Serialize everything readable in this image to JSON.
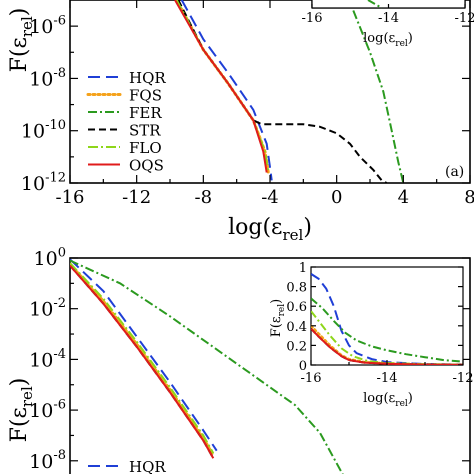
{
  "chart_data": [
    {
      "type": "line",
      "panel_label": "(a)",
      "xlabel": "log(ε_rel)",
      "ylabel": "F(ε_rel)",
      "y_scale": "log",
      "xlim": [
        -16,
        8
      ],
      "ylim_exp": [
        -12,
        -5
      ],
      "x_ticks": [
        "-16",
        "-12",
        "-8",
        "-4",
        "0",
        "4",
        "8"
      ],
      "y_ticks": [
        {
          "base": "10",
          "exp": "-6",
          "value": -6
        },
        {
          "base": "10",
          "exp": "-8",
          "value": -8
        },
        {
          "base": "10",
          "exp": "-10",
          "value": -10
        },
        {
          "base": "10",
          "exp": "-12",
          "value": -12
        }
      ],
      "legend": {
        "placement": "middle-left",
        "entries": [
          "HQR",
          "FQS",
          "FER",
          "STR",
          "FLO",
          "OQS"
        ]
      },
      "series": [
        {
          "name": "HQR",
          "color": "#1f3fd6",
          "dash": "12 6",
          "x": [
            -9.3,
            -8,
            -6.5,
            -5,
            -4.2,
            -4.0,
            -3.9
          ],
          "logy": [
            -5,
            -6.5,
            -7.8,
            -9.2,
            -10.5,
            -11.4,
            -11.9
          ]
        },
        {
          "name": "FQS",
          "color": "#f5a21a",
          "dash": "2 3",
          "x": [
            -9.6,
            -8,
            -6.5,
            -5,
            -4.3,
            -4.1
          ],
          "logy": [
            -5,
            -6.9,
            -8.2,
            -9.6,
            -10.8,
            -11.6
          ]
        },
        {
          "name": "FER",
          "color": "#2b9a1f",
          "dash": "9 3 2 3",
          "x": [
            1.0,
            2.0,
            2.8,
            3.3,
            3.7,
            4.0
          ],
          "logy": [
            -5.4,
            -7,
            -8.5,
            -10,
            -11.2,
            -12
          ]
        },
        {
          "name": "STR",
          "color": "#000000",
          "dash": "7 4",
          "x": [
            -9.5,
            -8,
            -6.5,
            -5,
            -4.5,
            -2,
            -1,
            0,
            0.8,
            1.4,
            2.2,
            2.7,
            3.0
          ],
          "logy": [
            -5,
            -6.9,
            -8.2,
            -9.6,
            -9.75,
            -9.75,
            -9.85,
            -10.1,
            -10.5,
            -11,
            -11.5,
            -11.9,
            -12
          ]
        },
        {
          "name": "FLO",
          "color": "#8ed61a",
          "dash": "10 3 2 3",
          "x": [
            -9.6,
            -8,
            -6.5,
            -5,
            -4.3,
            -4.1
          ],
          "logy": [
            -5,
            -6.9,
            -8.2,
            -9.6,
            -10.8,
            -11.6
          ]
        },
        {
          "name": "OQS",
          "color": "#e01b1b",
          "dash": "",
          "x": [
            -9.7,
            -8,
            -6.5,
            -5,
            -4.4,
            -4.2
          ],
          "logy": [
            -5,
            -6.9,
            -8.2,
            -9.6,
            -10.8,
            -11.6
          ]
        }
      ],
      "inset": {
        "xlabel": "log(ε_rel)",
        "x_ticks": [
          "-16",
          "-14",
          "-12"
        ],
        "xlim": [
          -16,
          -12
        ]
      }
    },
    {
      "type": "line",
      "xlabel": "",
      "ylabel": "F(ε_rel)",
      "y_scale": "log",
      "xlim": [
        -16,
        8
      ],
      "ylim_exp": [
        -9,
        0
      ],
      "y_ticks": [
        {
          "base": "10",
          "exp": "0",
          "value": 0
        },
        {
          "base": "10",
          "exp": "-2",
          "value": -2
        },
        {
          "base": "10",
          "exp": "-4",
          "value": -4
        },
        {
          "base": "10",
          "exp": "-6",
          "value": -6
        },
        {
          "base": "10",
          "exp": "-8",
          "value": -8
        }
      ],
      "legend": {
        "placement": "bottom-left",
        "entries": [
          "HQR"
        ]
      },
      "series": [
        {
          "name": "HQR",
          "color": "#1f3fd6",
          "dash": "12 6",
          "x": [
            -16,
            -14,
            -12,
            -10,
            -8,
            -7.2
          ],
          "logy": [
            -0.05,
            -1.3,
            -3.1,
            -4.9,
            -6.8,
            -7.6
          ]
        },
        {
          "name": "FQS",
          "color": "#f5a21a",
          "dash": "2 3",
          "x": [
            -16,
            -14,
            -12,
            -10,
            -8,
            -7.4
          ],
          "logy": [
            -0.25,
            -1.7,
            -3.4,
            -5.2,
            -7.1,
            -7.8
          ]
        },
        {
          "name": "FER",
          "color": "#2b9a1f",
          "dash": "9 3 2 3",
          "x": [
            -16,
            -13,
            -10,
            -7,
            -4,
            -2.5,
            -1,
            0.5
          ],
          "logy": [
            -0.1,
            -1.0,
            -2.3,
            -3.7,
            -5.1,
            -5.8,
            -6.9,
            -8.7
          ]
        },
        {
          "name": "STR",
          "color": "#000000",
          "dash": "7 4",
          "x": [
            -16,
            -14,
            -12,
            -10,
            -8,
            -7.4
          ],
          "logy": [
            -0.3,
            -1.8,
            -3.5,
            -5.3,
            -7.2,
            -7.9
          ]
        },
        {
          "name": "FLO",
          "color": "#8ed61a",
          "dash": "10 3 2 3",
          "x": [
            -16,
            -14,
            -12,
            -10,
            -8,
            -7.4
          ],
          "logy": [
            -0.2,
            -1.6,
            -3.3,
            -5.1,
            -7.0,
            -7.7
          ]
        },
        {
          "name": "OQS",
          "color": "#e01b1b",
          "dash": "",
          "x": [
            -16,
            -14,
            -12,
            -10,
            -8,
            -7.4
          ],
          "logy": [
            -0.3,
            -1.8,
            -3.5,
            -5.3,
            -7.2,
            -7.9
          ]
        }
      ],
      "inset": {
        "xlabel": "log(ε_rel)",
        "ylabel": "F(ε_rel)",
        "xlim": [
          -16,
          -12
        ],
        "ylim": [
          0,
          1
        ],
        "x_ticks": [
          "-16",
          "-14",
          "-12"
        ],
        "y_ticks": [
          "0",
          "0.2",
          "0.4",
          "0.6",
          "0.8",
          "1"
        ],
        "series": [
          {
            "name": "HQR",
            "color": "#1f3fd6",
            "dash": "10 5",
            "x": [
              -16,
              -15.8,
              -15.6,
              -15.4,
              -15.2,
              -15.0,
              -14.8,
              -14.4,
              -14,
              -13,
              -12
            ],
            "y": [
              0.93,
              0.88,
              0.78,
              0.6,
              0.35,
              0.2,
              0.12,
              0.06,
              0.03,
              0.01,
              0.005
            ]
          },
          {
            "name": "FQS",
            "color": "#f5a21a",
            "dash": "2 3",
            "x": [
              -16,
              -15.8,
              -15.5,
              -15.2,
              -15.0,
              -14.6,
              -14,
              -13,
              -12
            ],
            "y": [
              0.4,
              0.32,
              0.2,
              0.1,
              0.06,
              0.03,
              0.015,
              0.005,
              0.002
            ]
          },
          {
            "name": "FER",
            "color": "#2b9a1f",
            "dash": "8 3 2 3",
            "x": [
              -16,
              -15.7,
              -15.4,
              -15.1,
              -14.8,
              -14.4,
              -14,
              -13.5,
              -13,
              -12.5,
              -12
            ],
            "y": [
              0.68,
              0.58,
              0.45,
              0.33,
              0.25,
              0.19,
              0.15,
              0.11,
              0.08,
              0.05,
              0.035
            ]
          },
          {
            "name": "STR",
            "color": "#000000",
            "dash": "6 4",
            "x": [
              -16,
              -15.8,
              -15.5,
              -15.2,
              -15.0,
              -14.6,
              -14,
              -13,
              -12
            ],
            "y": [
              0.37,
              0.29,
              0.18,
              0.09,
              0.05,
              0.025,
              0.012,
              0.004,
              0.002
            ]
          },
          {
            "name": "FLO",
            "color": "#8ed61a",
            "dash": "8 3 2 3",
            "x": [
              -16,
              -15.8,
              -15.5,
              -15.2,
              -14.9,
              -14.5,
              -14,
              -13,
              -12
            ],
            "y": [
              0.55,
              0.45,
              0.3,
              0.17,
              0.09,
              0.04,
              0.02,
              0.008,
              0.004
            ]
          },
          {
            "name": "OQS",
            "color": "#e01b1b",
            "dash": "",
            "x": [
              -16,
              -15.8,
              -15.5,
              -15.2,
              -15.0,
              -14.6,
              -14,
              -13,
              -12
            ],
            "y": [
              0.37,
              0.29,
              0.18,
              0.09,
              0.05,
              0.025,
              0.012,
              0.004,
              0.002
            ]
          }
        ]
      }
    }
  ]
}
